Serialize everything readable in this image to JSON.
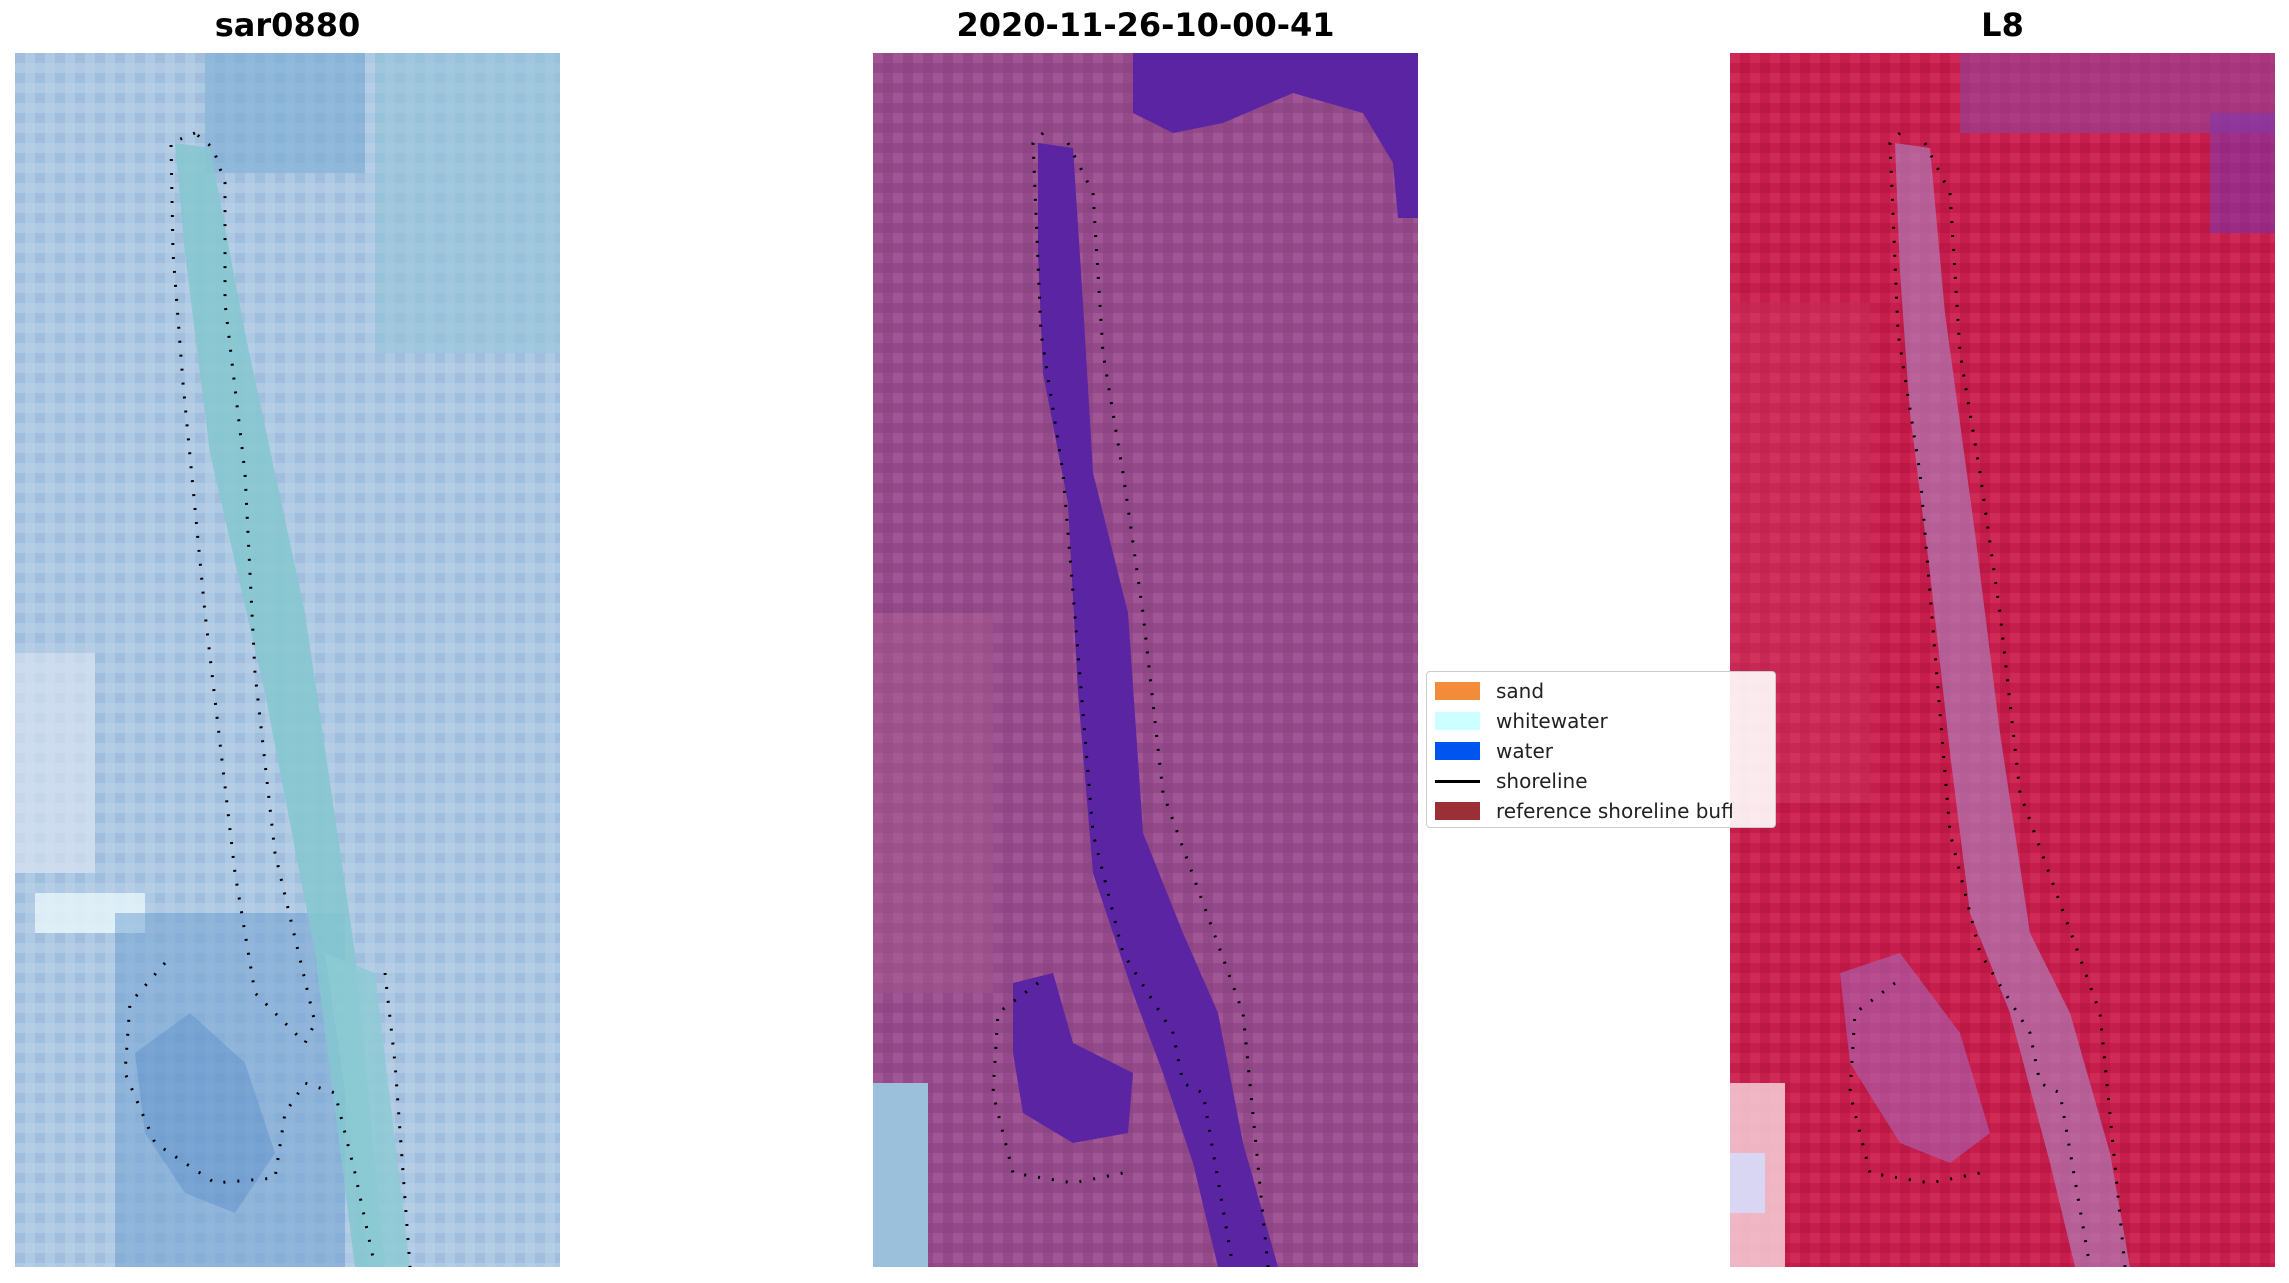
{
  "panels": [
    {
      "title": "sar0880",
      "style": "rgb"
    },
    {
      "title": "2020-11-26-10-00-41",
      "style": "classified"
    },
    {
      "title": "L8",
      "style": "index"
    }
  ],
  "legend": {
    "entries": [
      {
        "label": "sand",
        "color": "#f28c3a",
        "kind": "patch"
      },
      {
        "label": "whitewater",
        "color": "#ccffff",
        "kind": "patch"
      },
      {
        "label": "water",
        "color": "#0055ee",
        "kind": "patch"
      },
      {
        "label": "shoreline",
        "color": "#000000",
        "kind": "line"
      },
      {
        "label": "reference shoreline buffer",
        "color": "#9a2f36",
        "kind": "patch"
      }
    ]
  },
  "colors": {
    "rgb_base": "#a8c4de",
    "rgb_channel": "#7cc4cf",
    "classified_base": "#9a4f8f",
    "classified_water": "#5a22a0",
    "index_base": "#c31c4a",
    "index_channel": "#a352a5"
  }
}
